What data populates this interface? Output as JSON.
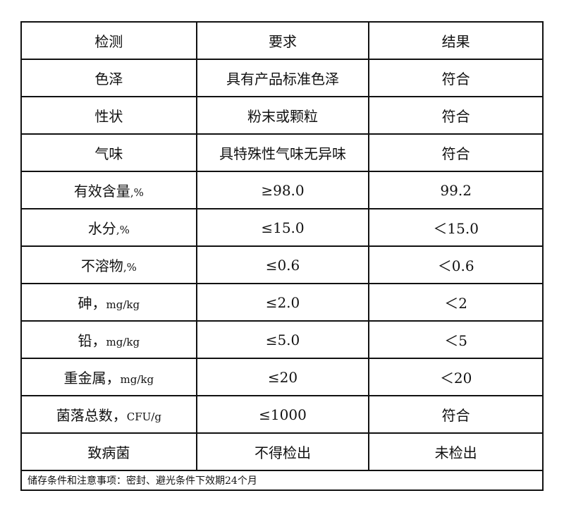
{
  "table": {
    "headers": [
      "检测",
      "要求",
      "结果"
    ],
    "rows": [
      {
        "item": "色泽",
        "unit": "",
        "requirement": "具有产品标准色泽",
        "result": "符合"
      },
      {
        "item": "性状",
        "unit": "",
        "requirement": "粉末或颗粒",
        "result": "符合"
      },
      {
        "item": "气味",
        "unit": "",
        "requirement": "具特殊性气味无异味",
        "result": "符合"
      },
      {
        "item": "有效含量",
        "unit": ",%",
        "requirement": "≥98.0",
        "result": "99.2"
      },
      {
        "item": "水分",
        "unit": ",%",
        "requirement": "≤15.0",
        "result": "＜15.0"
      },
      {
        "item": "不溶物",
        "unit": ",%",
        "requirement": "≤0.6",
        "result": "＜0.6"
      },
      {
        "item": "砷，",
        "unit": "mg/kg",
        "requirement": "≤2.0",
        "result": "＜2"
      },
      {
        "item": "铅，",
        "unit": "mg/kg",
        "requirement": "≤5.0",
        "result": "＜5"
      },
      {
        "item": "重金属，",
        "unit": "mg/kg",
        "requirement": "≤20",
        "result": "＜20"
      },
      {
        "item": "菌落总数，",
        "unit": "CFU/g",
        "requirement": "≤1000",
        "result": "符合"
      },
      {
        "item": "致病菌",
        "unit": "",
        "requirement": "不得检出",
        "result": "未检出"
      }
    ],
    "footer": "储存条件和注意事项：密封、避光条件下效期24个月"
  }
}
